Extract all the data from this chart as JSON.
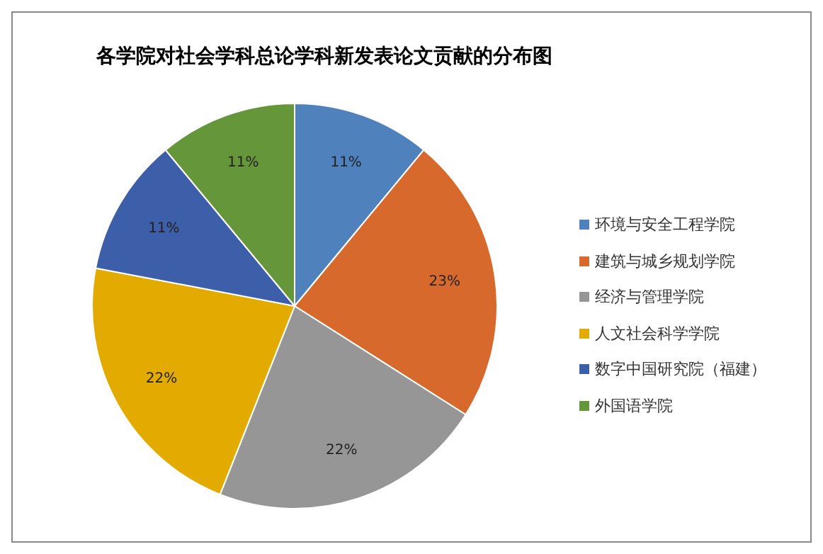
{
  "chart_data": {
    "type": "pie",
    "title": "各学院对社会学科总论学科新发表论文贡献的分布图",
    "categories": [
      "环境与安全工程学院",
      "建筑与城乡规划学院",
      "经济与管理学院",
      "人文社会科学学院",
      "数字中国研究院（福建）",
      "外国语学院"
    ],
    "values": [
      11,
      23,
      22,
      22,
      11,
      11
    ],
    "value_labels": [
      "11%",
      "23%",
      "22%",
      "22%",
      "11%",
      "11%"
    ],
    "colors": [
      "#4f81bd",
      "#d8692d",
      "#969696",
      "#e3aa00",
      "#3d5ea8",
      "#66963a"
    ],
    "legend": "right"
  }
}
